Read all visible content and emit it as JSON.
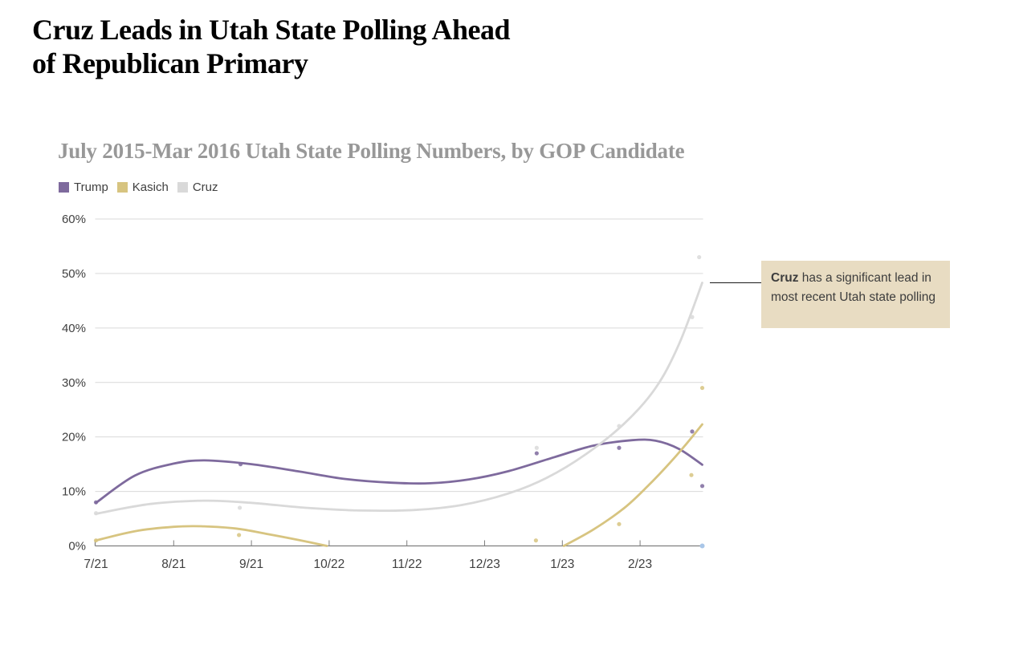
{
  "header": {
    "title": "Cruz Leads in Utah State Polling Ahead\nof Republican Primary"
  },
  "chart_data": {
    "type": "line",
    "title": "July 2015-Mar 2016 Utah State Polling Numbers, by GOP Candidate",
    "x_tick_labels": [
      "7/21",
      "8/21",
      "9/21",
      "10/22",
      "11/22",
      "12/23",
      "1/23",
      "2/23"
    ],
    "x_tick_positions": [
      0,
      1,
      2,
      3,
      4,
      5,
      6,
      7
    ],
    "xlim": [
      0,
      7.81
    ],
    "y_ticks": [
      0,
      10,
      20,
      30,
      40,
      50,
      60
    ],
    "y_unit": "%",
    "ylim": [
      0,
      60
    ],
    "grid": "horizontal",
    "grid_color": "#d9d9d9",
    "axis_color": "#7f7f7f",
    "label_color": "#404040",
    "legend_position": "top-left",
    "series": [
      {
        "name": "Trump",
        "color": "#7e6a9d",
        "trend_segments": [
          [
            [
              0,
              7.9
            ],
            [
              0.5,
              12.9
            ],
            [
              1,
              15.1
            ],
            [
              1.4,
              15.7
            ],
            [
              2,
              15
            ],
            [
              2.6,
              13.7
            ],
            [
              3.2,
              12.3
            ],
            [
              3.8,
              11.6
            ],
            [
              4.3,
              11.5
            ],
            [
              4.8,
              12.2
            ],
            [
              5.3,
              13.7
            ],
            [
              5.9,
              16.3
            ],
            [
              6.4,
              18.4
            ],
            [
              6.9,
              19.4
            ],
            [
              7.2,
              19.3
            ],
            [
              7.5,
              17.8
            ],
            [
              7.8,
              14.9
            ]
          ]
        ],
        "poll_points": [
          [
            0,
            8
          ],
          [
            1.86,
            15
          ],
          [
            5.67,
            17
          ],
          [
            6.73,
            18
          ],
          [
            7.67,
            21
          ],
          [
            7.8,
            11
          ]
        ]
      },
      {
        "name": "Kasich",
        "color": "#d7c480",
        "trend_segments": [
          [
            [
              0,
              1
            ],
            [
              0.5,
              2.7
            ],
            [
              1,
              3.5
            ],
            [
              1.35,
              3.6
            ],
            [
              1.8,
              3.2
            ],
            [
              2.2,
              2.2
            ],
            [
              2.6,
              1.1
            ],
            [
              2.97,
              0
            ]
          ],
          [
            [
              6.02,
              0
            ],
            [
              6.4,
              3
            ],
            [
              6.8,
              7
            ],
            [
              7.1,
              11
            ],
            [
              7.4,
              15.5
            ],
            [
              7.6,
              18.8
            ],
            [
              7.8,
              22.3
            ]
          ]
        ],
        "poll_points": [
          [
            0,
            1
          ],
          [
            1.84,
            2
          ],
          [
            5.66,
            1
          ],
          [
            6.73,
            4
          ],
          [
            7.66,
            13
          ],
          [
            7.8,
            29
          ]
        ]
      },
      {
        "name": "Cruz",
        "color": "#d9d9d9",
        "trend_segments": [
          [
            [
              0,
              5.9
            ],
            [
              0.7,
              7.7
            ],
            [
              1.4,
              8.3
            ],
            [
              2,
              7.9
            ],
            [
              2.7,
              7
            ],
            [
              3.4,
              6.5
            ],
            [
              4.1,
              6.6
            ],
            [
              4.7,
              7.5
            ],
            [
              5.3,
              9.6
            ],
            [
              5.8,
              12.5
            ],
            [
              6.3,
              16.8
            ],
            [
              6.8,
              22.5
            ],
            [
              7.2,
              29
            ],
            [
              7.5,
              37
            ],
            [
              7.8,
              48.3
            ]
          ]
        ],
        "poll_points": [
          [
            0,
            6
          ],
          [
            1.85,
            7
          ],
          [
            5.67,
            18
          ],
          [
            6.73,
            22
          ],
          [
            7.67,
            42
          ],
          [
            7.76,
            53
          ]
        ]
      }
    ],
    "extra_points": [
      {
        "x": 7.8,
        "y": 0,
        "color": "#a9c6e8",
        "name": "axis-end-marker"
      }
    ]
  },
  "annotation": {
    "bold_text": "Cruz",
    "body_text": " has a significant lead in most recent Utah state polling",
    "bg_color": "#e8dcc2"
  }
}
